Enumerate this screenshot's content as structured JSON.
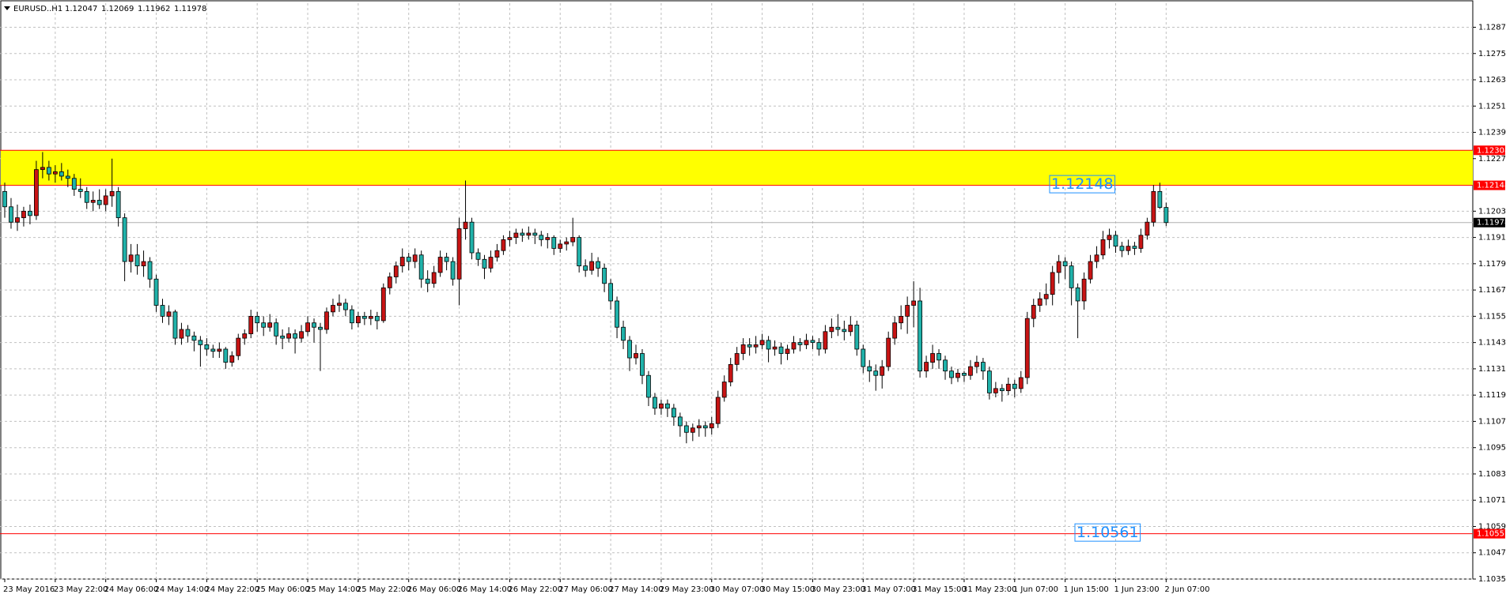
{
  "chart_data": {
    "type": "candlestick",
    "symbol": "EURUSD..H1",
    "up_color": "#c81414",
    "down_color": "#20b2aa",
    "grid": true,
    "ylim": [
      1.1035,
      1.1298
    ],
    "yticks": [
      {
        "value": 1.1287,
        "label": "1.12870"
      },
      {
        "value": 1.1275,
        "label": "1.12750"
      },
      {
        "value": 1.1263,
        "label": "1.12630"
      },
      {
        "value": 1.1251,
        "label": "1.12510"
      },
      {
        "value": 1.1239,
        "label": "1.12390"
      },
      {
        "value": 1.1227,
        "label": "1.12270"
      },
      {
        "value": 1.1203,
        "label": "1.12030"
      },
      {
        "value": 1.1191,
        "label": "1.11910"
      },
      {
        "value": 1.1179,
        "label": "1.11790"
      },
      {
        "value": 1.1167,
        "label": "1.11670"
      },
      {
        "value": 1.1155,
        "label": "1.11550"
      },
      {
        "value": 1.1143,
        "label": "1.11430"
      },
      {
        "value": 1.1131,
        "label": "1.11310"
      },
      {
        "value": 1.1119,
        "label": "1.11190"
      },
      {
        "value": 1.1107,
        "label": "1.11070"
      },
      {
        "value": 1.1095,
        "label": "1.10950"
      },
      {
        "value": 1.1083,
        "label": "1.10830"
      },
      {
        "value": 1.1071,
        "label": "1.10710"
      },
      {
        "value": 1.1059,
        "label": "1.10590"
      },
      {
        "value": 1.1047,
        "label": "1.10470"
      },
      {
        "value": 1.1035,
        "label": "1.10350"
      }
    ],
    "zone": {
      "low": 1.12148,
      "high": 1.12308,
      "color": "#ffff00",
      "line_color": "#ff0000"
    },
    "hline": {
      "value": 1.10557,
      "color": "#ff0000"
    },
    "annotation": "1.10561",
    "categories": [
      "23 May 2016",
      null,
      null,
      null,
      null,
      null,
      null,
      null,
      "23 May 22:00",
      null,
      null,
      null,
      null,
      null,
      null,
      null,
      "24 May 06:00",
      null,
      null,
      null,
      null,
      null,
      null,
      null,
      "24 May 14:00",
      null,
      null,
      null,
      null,
      null,
      null,
      null,
      "24 May 22:00",
      null,
      null,
      null,
      null,
      null,
      null,
      null,
      "25 May 06:00",
      null,
      null,
      null,
      null,
      null,
      null,
      null,
      "25 May 14:00",
      null,
      null,
      null,
      null,
      null,
      null,
      null,
      "25 May 22:00",
      null,
      null,
      null,
      null,
      null,
      null,
      null,
      "26 May 06:00",
      null,
      null,
      null,
      null,
      null,
      null,
      null,
      "26 May 14:00",
      null,
      null,
      null,
      null,
      null,
      null,
      null,
      "26 May 22:00",
      null,
      null,
      null,
      null,
      null,
      null,
      null,
      "27 May 06:00",
      null,
      null,
      null,
      null,
      null,
      null,
      null,
      "27 May 14:00",
      null,
      null,
      null,
      null,
      null,
      null,
      null,
      "29 May 23:00",
      null,
      null,
      null,
      null,
      null,
      null,
      null,
      "30 May 07:00",
      null,
      null,
      null,
      null,
      null,
      null,
      null,
      "30 May 15:00",
      null,
      null,
      null,
      null,
      null,
      null,
      null,
      "30 May 23:00",
      null,
      null,
      null,
      null,
      null,
      null,
      null,
      "31 May 07:00",
      null,
      null,
      null,
      null,
      null,
      null,
      null,
      "31 May 15:00",
      null,
      null,
      null,
      null,
      null,
      null,
      null,
      "31 May 23:00",
      null,
      null,
      null,
      null,
      null,
      null,
      null,
      "1 Jun 07:00",
      null,
      null,
      null,
      null,
      null,
      null,
      null,
      "1 Jun 15:00",
      null,
      null,
      null,
      null,
      null,
      null,
      null,
      "1 Jun 23:00",
      null,
      null,
      null,
      null,
      null,
      null,
      null,
      "2 Jun 07:00"
    ],
    "candles": [
      [
        1.1212,
        1.1216,
        1.12,
        1.1205
      ],
      [
        1.1205,
        1.1209,
        1.1195,
        1.1198
      ],
      [
        1.1198,
        1.1206,
        1.1194,
        1.12
      ],
      [
        1.12,
        1.1205,
        1.1196,
        1.1203
      ],
      [
        1.1203,
        1.1206,
        1.1197,
        1.1201
      ],
      [
        1.1201,
        1.1226,
        1.1199,
        1.1222
      ],
      [
        1.1222,
        1.123,
        1.1218,
        1.1223
      ],
      [
        1.1223,
        1.1226,
        1.1217,
        1.122
      ],
      [
        1.122,
        1.1224,
        1.1216,
        1.1221
      ],
      [
        1.1221,
        1.1225,
        1.1217,
        1.1219
      ],
      [
        1.1219,
        1.1222,
        1.1214,
        1.1218
      ],
      [
        1.1218,
        1.122,
        1.121,
        1.1213
      ],
      [
        1.1213,
        1.1218,
        1.1209,
        1.1212
      ],
      [
        1.1212,
        1.1214,
        1.1204,
        1.1207
      ],
      [
        1.1207,
        1.1212,
        1.1203,
        1.1208
      ],
      [
        1.1208,
        1.1213,
        1.1204,
        1.1206
      ],
      [
        1.1206,
        1.1213,
        1.1203,
        1.121
      ],
      [
        1.121,
        1.1227,
        1.1205,
        1.1212
      ],
      [
        1.1212,
        1.1214,
        1.1196,
        1.12
      ],
      [
        1.12,
        1.1202,
        1.1171,
        1.118
      ],
      [
        1.118,
        1.1188,
        1.1175,
        1.1183
      ],
      [
        1.1183,
        1.1188,
        1.1174,
        1.1178
      ],
      [
        1.1178,
        1.1185,
        1.1173,
        1.118
      ],
      [
        1.118,
        1.1182,
        1.1168,
        1.1172
      ],
      [
        1.1172,
        1.1174,
        1.1157,
        1.116
      ],
      [
        1.116,
        1.1163,
        1.1152,
        1.1155
      ],
      [
        1.1155,
        1.116,
        1.1151,
        1.1157
      ],
      [
        1.1157,
        1.1158,
        1.1142,
        1.1145
      ],
      [
        1.1145,
        1.1152,
        1.1142,
        1.1149
      ],
      [
        1.1149,
        1.1151,
        1.1143,
        1.1146
      ],
      [
        1.1146,
        1.1148,
        1.1139,
        1.1144
      ],
      [
        1.1144,
        1.1146,
        1.1132,
        1.1142
      ],
      [
        1.1142,
        1.1145,
        1.1137,
        1.114
      ],
      [
        1.114,
        1.1142,
        1.1136,
        1.1139
      ],
      [
        1.1139,
        1.1143,
        1.1136,
        1.114
      ],
      [
        1.114,
        1.1141,
        1.1131,
        1.1134
      ],
      [
        1.1134,
        1.1139,
        1.1132,
        1.1137
      ],
      [
        1.1137,
        1.1147,
        1.1135,
        1.1145
      ],
      [
        1.1145,
        1.1149,
        1.1142,
        1.1147
      ],
      [
        1.1147,
        1.1158,
        1.1145,
        1.1155
      ],
      [
        1.1155,
        1.1157,
        1.1148,
        1.1152
      ],
      [
        1.1152,
        1.1155,
        1.1146,
        1.115
      ],
      [
        1.115,
        1.1156,
        1.1148,
        1.1152
      ],
      [
        1.1152,
        1.1154,
        1.1142,
        1.1146
      ],
      [
        1.1146,
        1.1149,
        1.114,
        1.1145
      ],
      [
        1.1145,
        1.115,
        1.1143,
        1.1147
      ],
      [
        1.1147,
        1.1149,
        1.1138,
        1.1145
      ],
      [
        1.1145,
        1.1151,
        1.1143,
        1.1148
      ],
      [
        1.1148,
        1.1155,
        1.1146,
        1.1152
      ],
      [
        1.1152,
        1.1154,
        1.1143,
        1.115
      ],
      [
        1.115,
        1.1152,
        1.113,
        1.1149
      ],
      [
        1.1149,
        1.1159,
        1.1147,
        1.1157
      ],
      [
        1.1157,
        1.1163,
        1.1155,
        1.116
      ],
      [
        1.116,
        1.1165,
        1.1157,
        1.1161
      ],
      [
        1.1161,
        1.1163,
        1.1155,
        1.1158
      ],
      [
        1.1158,
        1.116,
        1.1149,
        1.1152
      ],
      [
        1.1152,
        1.1157,
        1.115,
        1.1155
      ],
      [
        1.1155,
        1.1157,
        1.1151,
        1.1154
      ],
      [
        1.1154,
        1.1158,
        1.1151,
        1.1155
      ],
      [
        1.1155,
        1.1157,
        1.1149,
        1.1153
      ],
      [
        1.1153,
        1.117,
        1.1152,
        1.1168
      ],
      [
        1.1168,
        1.1175,
        1.1165,
        1.1173
      ],
      [
        1.1173,
        1.118,
        1.117,
        1.1178
      ],
      [
        1.1178,
        1.1186,
        1.1175,
        1.1182
      ],
      [
        1.1182,
        1.1184,
        1.1176,
        1.118
      ],
      [
        1.118,
        1.1186,
        1.1177,
        1.1183
      ],
      [
        1.1183,
        1.1185,
        1.1168,
        1.1172
      ],
      [
        1.1172,
        1.1176,
        1.1166,
        1.117
      ],
      [
        1.117,
        1.1178,
        1.1168,
        1.1175
      ],
      [
        1.1175,
        1.1185,
        1.1173,
        1.1182
      ],
      [
        1.1182,
        1.1184,
        1.1176,
        1.118
      ],
      [
        1.118,
        1.1182,
        1.1169,
        1.1172
      ],
      [
        1.1172,
        1.12,
        1.116,
        1.1195
      ],
      [
        1.1195,
        1.1217,
        1.119,
        1.1198
      ],
      [
        1.1198,
        1.12,
        1.1181,
        1.1184
      ],
      [
        1.1184,
        1.1186,
        1.1178,
        1.1181
      ],
      [
        1.1181,
        1.1183,
        1.1172,
        1.1177
      ],
      [
        1.1177,
        1.1185,
        1.1175,
        1.1182
      ],
      [
        1.1182,
        1.1188,
        1.118,
        1.1185
      ],
      [
        1.1185,
        1.1192,
        1.1183,
        1.119
      ],
      [
        1.119,
        1.1194,
        1.1187,
        1.1191
      ],
      [
        1.1191,
        1.1195,
        1.1188,
        1.1193
      ],
      [
        1.1193,
        1.1195,
        1.1189,
        1.1192
      ],
      [
        1.1192,
        1.1196,
        1.119,
        1.1193
      ],
      [
        1.1193,
        1.1195,
        1.1188,
        1.1192
      ],
      [
        1.1192,
        1.1194,
        1.1187,
        1.119
      ],
      [
        1.119,
        1.1193,
        1.1186,
        1.1191
      ],
      [
        1.1191,
        1.1192,
        1.1183,
        1.1186
      ],
      [
        1.1186,
        1.119,
        1.1184,
        1.1188
      ],
      [
        1.1188,
        1.1191,
        1.1185,
        1.1189
      ],
      [
        1.1189,
        1.12,
        1.1187,
        1.1191
      ],
      [
        1.1191,
        1.1192,
        1.1175,
        1.1178
      ],
      [
        1.1178,
        1.1181,
        1.1173,
        1.1176
      ],
      [
        1.1176,
        1.1184,
        1.1174,
        1.118
      ],
      [
        1.118,
        1.1182,
        1.1173,
        1.1177
      ],
      [
        1.1177,
        1.1179,
        1.1166,
        1.117
      ],
      [
        1.117,
        1.1172,
        1.1158,
        1.1162
      ],
      [
        1.1162,
        1.1164,
        1.1145,
        1.115
      ],
      [
        1.115,
        1.1153,
        1.114,
        1.1144
      ],
      [
        1.1144,
        1.1146,
        1.113,
        1.1136
      ],
      [
        1.1136,
        1.1142,
        1.1133,
        1.1138
      ],
      [
        1.1138,
        1.114,
        1.1124,
        1.1128
      ],
      [
        1.1128,
        1.113,
        1.1114,
        1.1118
      ],
      [
        1.1118,
        1.112,
        1.111,
        1.1113
      ],
      [
        1.1113,
        1.1117,
        1.111,
        1.1115
      ],
      [
        1.1115,
        1.1117,
        1.1109,
        1.1113
      ],
      [
        1.1113,
        1.1115,
        1.1105,
        1.1109
      ],
      [
        1.1109,
        1.1111,
        1.11,
        1.1105
      ],
      [
        1.1105,
        1.1107,
        1.1097,
        1.1102
      ],
      [
        1.1102,
        1.1106,
        1.1098,
        1.1104
      ],
      [
        1.1104,
        1.1108,
        1.11,
        1.1105
      ],
      [
        1.1105,
        1.1107,
        1.11,
        1.1104
      ],
      [
        1.1104,
        1.1109,
        1.1101,
        1.1106
      ],
      [
        1.1106,
        1.1121,
        1.1104,
        1.1118
      ],
      [
        1.1118,
        1.1128,
        1.1116,
        1.1125
      ],
      [
        1.1125,
        1.1136,
        1.1123,
        1.1133
      ],
      [
        1.1133,
        1.1141,
        1.113,
        1.1138
      ],
      [
        1.1138,
        1.1145,
        1.1135,
        1.1142
      ],
      [
        1.1142,
        1.1145,
        1.1137,
        1.1141
      ],
      [
        1.1141,
        1.1146,
        1.1138,
        1.1142
      ],
      [
        1.1142,
        1.1147,
        1.114,
        1.1144
      ],
      [
        1.1144,
        1.1146,
        1.1134,
        1.114
      ],
      [
        1.114,
        1.1144,
        1.1137,
        1.1141
      ],
      [
        1.1141,
        1.1143,
        1.1133,
        1.1138
      ],
      [
        1.1138,
        1.1142,
        1.1135,
        1.114
      ],
      [
        1.114,
        1.1146,
        1.1138,
        1.1143
      ],
      [
        1.1143,
        1.1145,
        1.1139,
        1.1142
      ],
      [
        1.1142,
        1.1147,
        1.114,
        1.1144
      ],
      [
        1.1144,
        1.1146,
        1.114,
        1.1143
      ],
      [
        1.1143,
        1.1145,
        1.1137,
        1.114
      ],
      [
        1.114,
        1.1151,
        1.1138,
        1.1148
      ],
      [
        1.1148,
        1.1154,
        1.1145,
        1.115
      ],
      [
        1.115,
        1.1156,
        1.1146,
        1.1149
      ],
      [
        1.1149,
        1.1153,
        1.1144,
        1.1148
      ],
      [
        1.1148,
        1.1155,
        1.1146,
        1.1151
      ],
      [
        1.1151,
        1.1153,
        1.1137,
        1.114
      ],
      [
        1.114,
        1.1142,
        1.1129,
        1.1132
      ],
      [
        1.1132,
        1.1135,
        1.1125,
        1.113
      ],
      [
        1.113,
        1.1133,
        1.1121,
        1.1128
      ],
      [
        1.1128,
        1.1135,
        1.1122,
        1.1132
      ],
      [
        1.1132,
        1.1148,
        1.113,
        1.1145
      ],
      [
        1.1145,
        1.1155,
        1.1142,
        1.1152
      ],
      [
        1.1152,
        1.116,
        1.1149,
        1.1155
      ],
      [
        1.1155,
        1.1164,
        1.1147,
        1.116
      ],
      [
        1.116,
        1.1171,
        1.115,
        1.1162
      ],
      [
        1.1162,
        1.1168,
        1.1127,
        1.113
      ],
      [
        1.113,
        1.1137,
        1.1127,
        1.1134
      ],
      [
        1.1134,
        1.1142,
        1.1131,
        1.1138
      ],
      [
        1.1138,
        1.114,
        1.1131,
        1.1135
      ],
      [
        1.1135,
        1.1137,
        1.1126,
        1.113
      ],
      [
        1.113,
        1.1132,
        1.1124,
        1.1127
      ],
      [
        1.1127,
        1.1131,
        1.1125,
        1.1129
      ],
      [
        1.1129,
        1.113,
        1.1125,
        1.1128
      ],
      [
        1.1128,
        1.1135,
        1.1126,
        1.1132
      ],
      [
        1.1132,
        1.1137,
        1.1129,
        1.1134
      ],
      [
        1.1134,
        1.1136,
        1.1126,
        1.113
      ],
      [
        1.113,
        1.1132,
        1.1117,
        1.112
      ],
      [
        1.112,
        1.1125,
        1.1118,
        1.1122
      ],
      [
        1.1122,
        1.1124,
        1.1116,
        1.1121
      ],
      [
        1.1121,
        1.1127,
        1.1119,
        1.1124
      ],
      [
        1.1124,
        1.1126,
        1.1118,
        1.1122
      ],
      [
        1.1122,
        1.113,
        1.112,
        1.1127
      ],
      [
        1.1127,
        1.1157,
        1.1124,
        1.1154
      ],
      [
        1.1154,
        1.1163,
        1.115,
        1.116
      ],
      [
        1.116,
        1.1166,
        1.1157,
        1.1163
      ],
      [
        1.1163,
        1.117,
        1.116,
        1.1165
      ],
      [
        1.1165,
        1.1178,
        1.116,
        1.1175
      ],
      [
        1.1175,
        1.1183,
        1.117,
        1.118
      ],
      [
        1.118,
        1.1182,
        1.1172,
        1.1178
      ],
      [
        1.1178,
        1.118,
        1.116,
        1.1168
      ],
      [
        1.1168,
        1.117,
        1.1145,
        1.1162
      ],
      [
        1.1162,
        1.1175,
        1.1158,
        1.1172
      ],
      [
        1.1172,
        1.1183,
        1.117,
        1.118
      ],
      [
        1.118,
        1.1187,
        1.1177,
        1.1183
      ],
      [
        1.1183,
        1.1194,
        1.1181,
        1.119
      ],
      [
        1.119,
        1.1195,
        1.1186,
        1.1192
      ],
      [
        1.1192,
        1.1194,
        1.1184,
        1.1187
      ],
      [
        1.1187,
        1.1189,
        1.1182,
        1.1185
      ],
      [
        1.1185,
        1.119,
        1.1183,
        1.1187
      ],
      [
        1.1187,
        1.1189,
        1.1183,
        1.1186
      ],
      [
        1.1186,
        1.1195,
        1.1184,
        1.1192
      ],
      [
        1.1192,
        1.12,
        1.119,
        1.1198
      ],
      [
        1.1198,
        1.1215,
        1.1196,
        1.1212
      ],
      [
        1.1212,
        1.1216,
        1.1204,
        1.12047
      ],
      [
        1.12047,
        1.12069,
        1.11962,
        1.11978
      ]
    ]
  }
}
